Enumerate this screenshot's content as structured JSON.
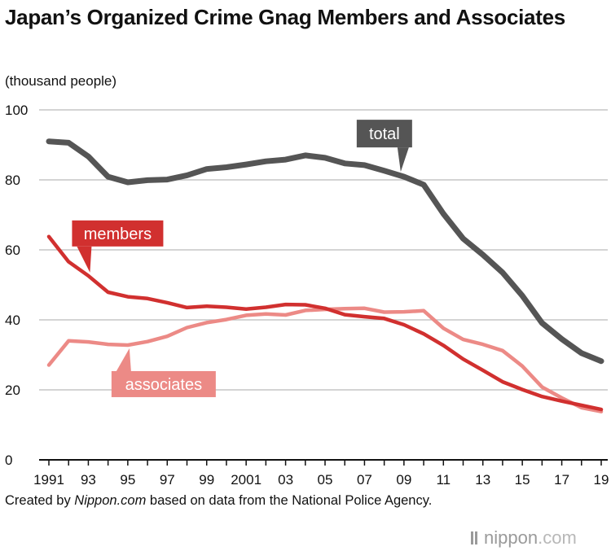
{
  "title": "Japan’s Organized Crime Gnag Members and Associates",
  "unit_label": "(thousand people)",
  "credit": {
    "prefix": "Created by ",
    "site": "Nippon.com",
    "suffix": " based on data from the National Police Agency."
  },
  "logo": {
    "word": "nippon",
    "dot": ".",
    "domain": "com"
  },
  "colors": {
    "total": "#555555",
    "members": "#d1302f",
    "associates": "#ec8a86",
    "grid": "#bbbbbb"
  },
  "chart_data": {
    "type": "line",
    "title": "Japan’s Organized Crime Gnag Members and Associates",
    "ylabel": "(thousand people)",
    "ylim": [
      0,
      100
    ],
    "yticks": [
      0,
      20,
      40,
      60,
      80,
      100
    ],
    "x": [
      1991,
      1992,
      1993,
      1994,
      1995,
      1996,
      1997,
      1998,
      1999,
      2000,
      2001,
      2002,
      2003,
      2004,
      2005,
      2006,
      2007,
      2008,
      2009,
      2010,
      2011,
      2012,
      2013,
      2014,
      2015,
      2016,
      2017,
      2018,
      2019
    ],
    "xtick_values": [
      1991,
      1993,
      1995,
      1997,
      1999,
      2001,
      2003,
      2005,
      2007,
      2009,
      2011,
      2013,
      2015,
      2017,
      2019
    ],
    "xtick_labels": [
      "1991",
      "93",
      "95",
      "97",
      "99",
      "2001",
      "03",
      "05",
      "07",
      "09",
      "11",
      "13",
      "15",
      "17",
      "19"
    ],
    "grid": true,
    "series": [
      {
        "name": "total",
        "key": "total",
        "values": [
          91.0,
          90.6,
          86.7,
          80.9,
          79.3,
          79.9,
          80.1,
          81.3,
          83.1,
          83.6,
          84.4,
          85.3,
          85.8,
          87.0,
          86.3,
          84.7,
          84.2,
          82.6,
          80.9,
          78.6,
          70.3,
          63.2,
          58.6,
          53.5,
          46.9,
          39.1,
          34.5,
          30.5,
          28.2
        ]
      },
      {
        "name": "members",
        "key": "members",
        "values": [
          63.8,
          56.6,
          52.6,
          47.9,
          46.6,
          46.1,
          44.9,
          43.5,
          43.9,
          43.6,
          43.1,
          43.6,
          44.4,
          44.3,
          43.3,
          41.5,
          40.9,
          40.4,
          38.6,
          36.0,
          32.7,
          28.8,
          25.6,
          22.3,
          20.1,
          18.1,
          16.8,
          15.6,
          14.4
        ]
      },
      {
        "name": "associates",
        "key": "associates",
        "values": [
          27.1,
          34.0,
          33.7,
          33.0,
          32.8,
          33.8,
          35.3,
          37.8,
          39.2,
          40.1,
          41.3,
          41.7,
          41.4,
          42.7,
          43.0,
          43.2,
          43.3,
          42.2,
          42.3,
          42.6,
          37.6,
          34.4,
          33.0,
          31.2,
          26.8,
          20.8,
          17.7,
          14.9,
          13.8
        ]
      }
    ],
    "annotations": [
      {
        "key": "total",
        "text": "total"
      },
      {
        "key": "members",
        "text": "members"
      },
      {
        "key": "associates",
        "text": "associates"
      }
    ]
  }
}
